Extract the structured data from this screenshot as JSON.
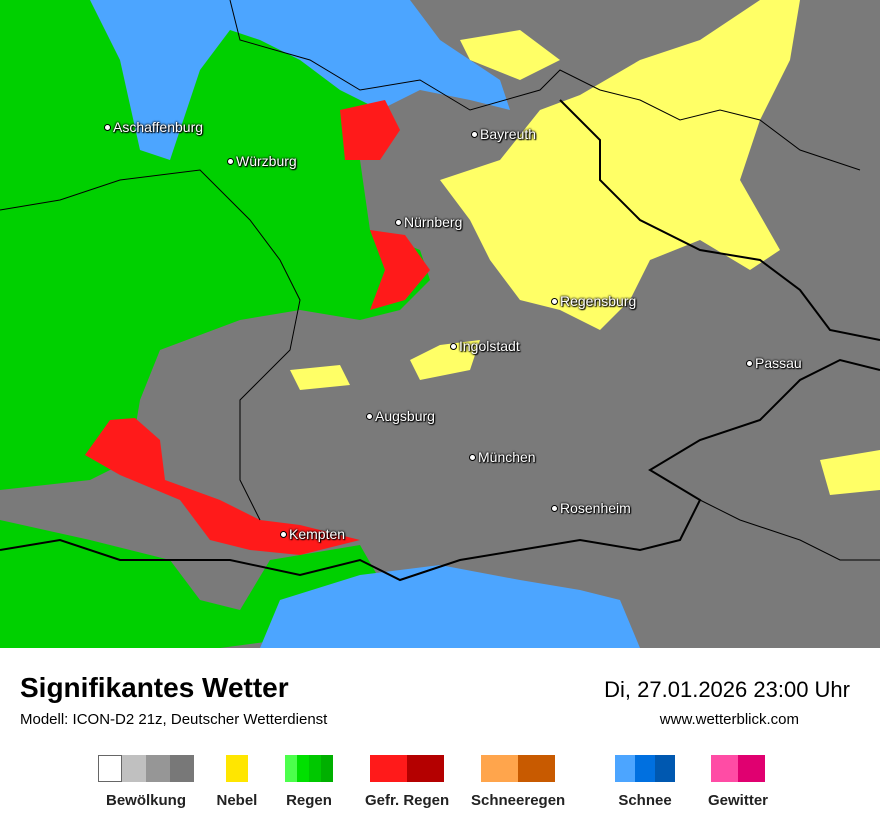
{
  "map": {
    "cities": [
      {
        "name": "Aschaffenburg"
      },
      {
        "name": "Würzburg"
      },
      {
        "name": "Bayreuth"
      },
      {
        "name": "Nürnberg"
      },
      {
        "name": "Regensburg"
      },
      {
        "name": "Ingolstadt"
      },
      {
        "name": "Passau"
      },
      {
        "name": "Augsburg"
      },
      {
        "name": "München"
      },
      {
        "name": "Rosenheim"
      },
      {
        "name": "Kempten"
      }
    ]
  },
  "header": {
    "title": "Signifikantes Wetter",
    "model": "Modell: ICON-D2 21z, Deutscher Wetterdienst",
    "datetime": "Di, 27.01.2026 23:00 Uhr",
    "website": "www.wetterblick.com"
  },
  "legend": [
    {
      "label": "Bewölkung",
      "colors": [
        "#ffffff",
        "#c0c0c0",
        "#969696",
        "#787878"
      ]
    },
    {
      "label": "Nebel",
      "colors": [
        "#ffe600"
      ]
    },
    {
      "label": "Regen",
      "colors": [
        "#4cff4c",
        "#00e000",
        "#00c800",
        "#00b000"
      ]
    },
    {
      "label": "Gefr. Regen",
      "colors": [
        "#ff1a1a",
        "#b40000"
      ]
    },
    {
      "label": "Schneeregen",
      "colors": [
        "#ffa54c",
        "#c85a00"
      ]
    },
    {
      "label": "Schnee",
      "colors": [
        "#4ca5ff",
        "#0070e0",
        "#0058b0"
      ]
    },
    {
      "label": "Gewitter",
      "colors": [
        "#ff4ca5",
        "#e00070"
      ]
    }
  ]
}
